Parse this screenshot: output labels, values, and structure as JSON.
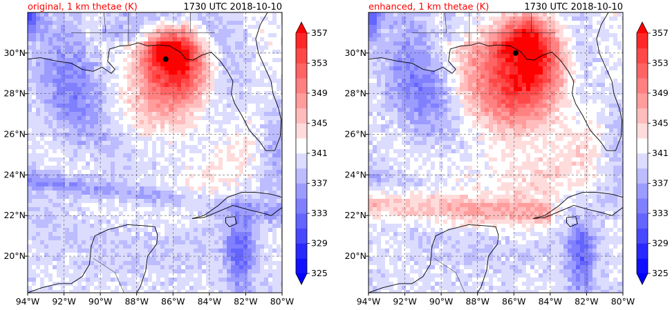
{
  "chart_data": [
    {
      "type": "heatmap",
      "title_left": "original, 1 km thetae (K)",
      "title_right": "1730 UTC 2018-10-10",
      "xlim": [
        -94,
        -80
      ],
      "ylim": [
        18.2,
        32.0
      ],
      "x_ticks": [
        -94,
        -92,
        -90,
        -88,
        -86,
        -84,
        -82,
        -80
      ],
      "x_tick_labels": [
        "94°W",
        "92°W",
        "90°W",
        "88°W",
        "86°W",
        "84°W",
        "82°W",
        "80°W"
      ],
      "y_ticks": [
        20,
        22,
        24,
        26,
        28,
        30
      ],
      "y_tick_labels": [
        "20°N",
        "22°N",
        "24°N",
        "26°N",
        "28°N",
        "30°N"
      ],
      "grid": true,
      "storm_center": [
        -86.4,
        29.7
      ],
      "colorbar": {
        "levels": [
          325,
          327,
          329,
          331,
          333,
          335,
          337,
          339,
          341,
          343,
          345,
          347,
          349,
          351,
          353,
          355,
          357
        ],
        "tick_values": [
          325,
          329,
          333,
          337,
          341,
          345,
          349,
          353,
          357
        ],
        "tick_labels": [
          "325",
          "329",
          "333",
          "337",
          "341",
          "345",
          "349",
          "353",
          "357"
        ],
        "extend": "both"
      }
    },
    {
      "type": "heatmap",
      "title_left": "enhanced, 1 km thetae (K)",
      "title_right": "1730 UTC 2018-10-10",
      "xlim": [
        -94,
        -80
      ],
      "ylim": [
        18.2,
        32.0
      ],
      "x_ticks": [
        -94,
        -92,
        -90,
        -88,
        -86,
        -84,
        -82,
        -80
      ],
      "x_tick_labels": [
        "94°W",
        "92°W",
        "90°W",
        "88°W",
        "86°W",
        "84°W",
        "82°W",
        "80°W"
      ],
      "y_ticks": [
        20,
        22,
        24,
        26,
        28,
        30
      ],
      "y_tick_labels": [
        "20°N",
        "22°N",
        "24°N",
        "26°N",
        "28°N",
        "30°N"
      ],
      "grid": true,
      "storm_center": [
        -85.9,
        30.0
      ],
      "colorbar": {
        "levels": [
          325,
          327,
          329,
          331,
          333,
          335,
          337,
          339,
          341,
          343,
          345,
          347,
          349,
          351,
          353,
          355,
          357
        ],
        "tick_values": [
          325,
          329,
          333,
          337,
          341,
          345,
          349,
          353,
          357
        ],
        "tick_labels": [
          "325",
          "329",
          "333",
          "337",
          "341",
          "345",
          "349",
          "353",
          "357"
        ],
        "extend": "both"
      }
    }
  ],
  "colors": {
    "title_left": "#ff0000",
    "title_right": "#000000",
    "coast": "#000000",
    "grid": "#555555"
  }
}
